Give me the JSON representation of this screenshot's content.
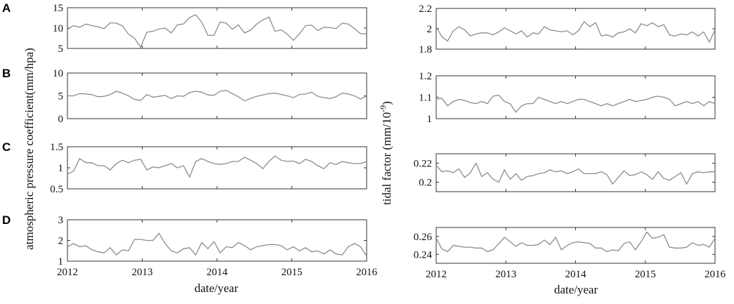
{
  "figure": {
    "left_ylabel": "atmospheric pressure coefficient(mm/hpa)",
    "right_ylabel_main": "tidal factor (mm/10",
    "right_ylabel_sup": "-9",
    "right_ylabel_end": ")"
  },
  "chart_data": [
    {
      "type": "line",
      "column": "left",
      "row": 0,
      "panel_label": "A",
      "xlim": [
        2012,
        2016
      ],
      "ylim": [
        5,
        15
      ],
      "yticks": [
        5,
        10,
        15
      ],
      "ytick_labels": [
        "5",
        "10",
        "15"
      ],
      "x": [
        2012.0,
        2012.0816,
        2012.1633,
        2012.2449,
        2012.3265,
        2012.4082,
        2012.4898,
        2012.5714,
        2012.6531,
        2012.7347,
        2012.8163,
        2012.898,
        2012.9796,
        2013.0612,
        2013.1429,
        2013.2245,
        2013.3061,
        2013.3878,
        2013.4694,
        2013.551,
        2013.6327,
        2013.7143,
        2013.7959,
        2013.8776,
        2013.9592,
        2014.0408,
        2014.1224,
        2014.2041,
        2014.2857,
        2014.3673,
        2014.449,
        2014.5306,
        2014.6122,
        2014.6939,
        2014.7755,
        2014.8571,
        2014.9388,
        2015.0204,
        2015.102,
        2015.1837,
        2015.2653,
        2015.3469,
        2015.4286,
        2015.5102,
        2015.5918,
        2015.6735,
        2015.7551,
        2015.8367,
        2015.9184,
        2016.0
      ],
      "values": [
        9.7,
        10.6,
        10.2,
        11.0,
        10.6,
        10.3,
        9.9,
        11.3,
        11.2,
        10.6,
        8.5,
        7.5,
        5.3,
        9.0,
        9.2,
        9.8,
        10.0,
        8.8,
        10.8,
        11.0,
        12.6,
        13.3,
        11.4,
        8.2,
        8.2,
        11.5,
        11.2,
        9.7,
        10.8,
        8.8,
        9.5,
        11.0,
        12.0,
        12.7,
        9.2,
        9.6,
        8.5,
        7.0,
        8.6,
        10.6,
        10.7,
        9.4,
        10.2,
        10.1,
        9.9,
        11.2,
        11.0,
        9.9,
        8.6,
        8.6
      ]
    },
    {
      "type": "line",
      "column": "left",
      "row": 1,
      "panel_label": "B",
      "xlim": [
        2012,
        2016
      ],
      "ylim": [
        0,
        10
      ],
      "yticks": [
        0,
        5,
        10
      ],
      "ytick_labels": [
        "0",
        "5",
        "10"
      ],
      "x": [
        2012.0,
        2012.0816,
        2012.1633,
        2012.2449,
        2012.3265,
        2012.4082,
        2012.4898,
        2012.5714,
        2012.6531,
        2012.7347,
        2012.8163,
        2012.898,
        2012.9796,
        2013.0612,
        2013.1429,
        2013.2245,
        2013.3061,
        2013.3878,
        2013.4694,
        2013.551,
        2013.6327,
        2013.7143,
        2013.7959,
        2013.8776,
        2013.9592,
        2014.0408,
        2014.1224,
        2014.2041,
        2014.2857,
        2014.3673,
        2014.449,
        2014.5306,
        2014.6122,
        2014.6939,
        2014.7755,
        2014.8571,
        2014.9388,
        2015.0204,
        2015.102,
        2015.1837,
        2015.2653,
        2015.3469,
        2015.4286,
        2015.5102,
        2015.5918,
        2015.6735,
        2015.7551,
        2015.8367,
        2015.9184,
        2016.0
      ],
      "values": [
        5.0,
        5.0,
        5.5,
        5.4,
        5.3,
        4.8,
        4.9,
        5.3,
        6.0,
        5.6,
        5.0,
        4.2,
        4.0,
        5.3,
        4.7,
        4.9,
        5.1,
        4.4,
        5.0,
        4.9,
        5.7,
        6.0,
        5.8,
        5.2,
        5.1,
        6.0,
        6.2,
        5.5,
        4.8,
        3.9,
        4.4,
        4.9,
        5.2,
        5.5,
        5.6,
        5.3,
        5.0,
        4.6,
        5.3,
        5.4,
        5.8,
        4.9,
        4.6,
        4.4,
        4.8,
        5.6,
        5.4,
        5.0,
        4.3,
        5.0
      ]
    },
    {
      "type": "line",
      "column": "left",
      "row": 2,
      "panel_label": "C",
      "xlim": [
        2012,
        2016
      ],
      "ylim": [
        0.5,
        1.5
      ],
      "yticks": [
        0.5,
        1,
        1.5
      ],
      "ytick_labels": [
        "0.5",
        "1",
        "1.5"
      ],
      "x": [
        2012.0,
        2012.0816,
        2012.1633,
        2012.2449,
        2012.3265,
        2012.4082,
        2012.4898,
        2012.5714,
        2012.6531,
        2012.7347,
        2012.8163,
        2012.898,
        2012.9796,
        2013.0612,
        2013.1429,
        2013.2245,
        2013.3061,
        2013.3878,
        2013.4694,
        2013.551,
        2013.6327,
        2013.7143,
        2013.7959,
        2013.8776,
        2013.9592,
        2014.0408,
        2014.1224,
        2014.2041,
        2014.2857,
        2014.3673,
        2014.449,
        2014.5306,
        2014.6122,
        2014.6939,
        2014.7755,
        2014.8571,
        2014.9388,
        2015.0204,
        2015.102,
        2015.1837,
        2015.2653,
        2015.3469,
        2015.4286,
        2015.5102,
        2015.5918,
        2015.6735,
        2015.7551,
        2015.8367,
        2015.9184,
        2016.0
      ],
      "values": [
        0.85,
        0.92,
        1.22,
        1.12,
        1.12,
        1.05,
        1.05,
        0.95,
        1.1,
        1.18,
        1.12,
        1.18,
        1.2,
        0.95,
        1.02,
        1.0,
        1.05,
        1.1,
        1.0,
        1.05,
        0.78,
        1.15,
        1.22,
        1.15,
        1.1,
        1.08,
        1.1,
        1.15,
        1.15,
        1.25,
        1.18,
        1.1,
        0.98,
        1.15,
        1.28,
        1.18,
        1.15,
        1.16,
        1.1,
        1.2,
        1.15,
        1.05,
        0.98,
        1.12,
        1.08,
        1.15,
        1.12,
        1.1,
        1.1,
        1.15
      ]
    },
    {
      "type": "line",
      "column": "left",
      "row": 3,
      "panel_label": "D",
      "xlim": [
        2012,
        2016
      ],
      "ylim": [
        1,
        3
      ],
      "yticks": [
        1,
        2,
        3
      ],
      "ytick_labels": [
        "1",
        "2",
        "3"
      ],
      "x": [
        2012.0,
        2012.0816,
        2012.1633,
        2012.2449,
        2012.3265,
        2012.4082,
        2012.4898,
        2012.5714,
        2012.6531,
        2012.7347,
        2012.8163,
        2012.898,
        2012.9796,
        2013.0612,
        2013.1429,
        2013.2245,
        2013.3061,
        2013.3878,
        2013.4694,
        2013.551,
        2013.6327,
        2013.7143,
        2013.7959,
        2013.8776,
        2013.9592,
        2014.0408,
        2014.1224,
        2014.2041,
        2014.2857,
        2014.3673,
        2014.449,
        2014.5306,
        2014.6122,
        2014.6939,
        2014.7755,
        2014.8571,
        2014.9388,
        2015.0204,
        2015.102,
        2015.1837,
        2015.2653,
        2015.3469,
        2015.4286,
        2015.5102,
        2015.5918,
        2015.6735,
        2015.7551,
        2015.8367,
        2015.9184,
        2016.0
      ],
      "values": [
        1.7,
        1.85,
        1.7,
        1.75,
        1.55,
        1.45,
        1.4,
        1.65,
        1.3,
        1.55,
        1.5,
        2.05,
        2.05,
        2.0,
        2.0,
        2.35,
        1.85,
        1.5,
        1.4,
        1.6,
        1.65,
        1.3,
        1.9,
        1.6,
        1.95,
        1.4,
        1.7,
        1.65,
        1.9,
        1.75,
        1.55,
        1.7,
        1.75,
        1.8,
        1.8,
        1.75,
        1.55,
        1.7,
        1.5,
        1.65,
        1.45,
        1.5,
        1.35,
        1.55,
        1.35,
        1.3,
        1.7,
        1.85,
        1.7,
        1.25
      ]
    },
    {
      "type": "line",
      "column": "right",
      "row": 0,
      "xlim": [
        2012,
        2016
      ],
      "ylim": [
        1.8,
        2.2
      ],
      "yticks": [
        1.8,
        2,
        2.2
      ],
      "ytick_labels": [
        "1.8",
        "2",
        "2.2"
      ],
      "x": [
        2012.0,
        2012.0816,
        2012.1633,
        2012.2449,
        2012.3265,
        2012.4082,
        2012.4898,
        2012.5714,
        2012.6531,
        2012.7347,
        2012.8163,
        2012.898,
        2012.9796,
        2013.0612,
        2013.1429,
        2013.2245,
        2013.3061,
        2013.3878,
        2013.4694,
        2013.551,
        2013.6327,
        2013.7143,
        2013.7959,
        2013.8776,
        2013.9592,
        2014.0408,
        2014.1224,
        2014.2041,
        2014.2857,
        2014.3673,
        2014.449,
        2014.5306,
        2014.6122,
        2014.6939,
        2014.7755,
        2014.8571,
        2014.9388,
        2015.0204,
        2015.102,
        2015.1837,
        2015.2653,
        2015.3469,
        2015.4286,
        2015.5102,
        2015.5918,
        2015.6735,
        2015.7551,
        2015.8367,
        2015.9184,
        2016.0
      ],
      "values": [
        2.02,
        1.92,
        1.88,
        1.98,
        2.02,
        1.99,
        1.93,
        1.95,
        1.96,
        1.96,
        1.94,
        1.97,
        2.01,
        1.98,
        1.95,
        1.98,
        1.92,
        1.96,
        1.95,
        2.02,
        1.99,
        1.98,
        1.97,
        1.98,
        1.94,
        1.98,
        2.07,
        2.02,
        2.06,
        1.93,
        1.94,
        1.92,
        1.96,
        1.97,
        2.0,
        1.96,
        2.05,
        2.03,
        2.06,
        2.02,
        2.04,
        1.94,
        1.93,
        1.95,
        1.94,
        1.97,
        1.93,
        1.97,
        1.87,
        1.99
      ]
    },
    {
      "type": "line",
      "column": "right",
      "row": 1,
      "xlim": [
        2012,
        2016
      ],
      "ylim": [
        1,
        1.2
      ],
      "yticks": [
        1,
        1.1,
        1.2
      ],
      "ytick_labels": [
        "1",
        "1.1",
        "1.2"
      ],
      "x": [
        2012.0,
        2012.0816,
        2012.1633,
        2012.2449,
        2012.3265,
        2012.4082,
        2012.4898,
        2012.5714,
        2012.6531,
        2012.7347,
        2012.8163,
        2012.898,
        2012.9796,
        2013.0612,
        2013.1429,
        2013.2245,
        2013.3061,
        2013.3878,
        2013.4694,
        2013.551,
        2013.6327,
        2013.7143,
        2013.7959,
        2013.8776,
        2013.9592,
        2014.0408,
        2014.1224,
        2014.2041,
        2014.2857,
        2014.3673,
        2014.449,
        2014.5306,
        2014.6122,
        2014.6939,
        2014.7755,
        2014.8571,
        2014.9388,
        2015.0204,
        2015.102,
        2015.1837,
        2015.2653,
        2015.3469,
        2015.4286,
        2015.5102,
        2015.5918,
        2015.6735,
        2015.7551,
        2015.8367,
        2015.9184,
        2016.0
      ],
      "values": [
        1.09,
        1.095,
        1.06,
        1.08,
        1.09,
        1.085,
        1.075,
        1.07,
        1.08,
        1.07,
        1.105,
        1.11,
        1.08,
        1.07,
        1.03,
        1.06,
        1.07,
        1.07,
        1.1,
        1.09,
        1.08,
        1.07,
        1.08,
        1.07,
        1.08,
        1.09,
        1.09,
        1.08,
        1.07,
        1.06,
        1.07,
        1.06,
        1.07,
        1.08,
        1.09,
        1.08,
        1.085,
        1.09,
        1.1,
        1.105,
        1.1,
        1.09,
        1.06,
        1.07,
        1.08,
        1.07,
        1.08,
        1.06,
        1.08,
        1.07
      ]
    },
    {
      "type": "line",
      "column": "right",
      "row": 2,
      "xlim": [
        2012,
        2016
      ],
      "ylim": [
        0.19,
        0.23
      ],
      "yticks": [
        0.2,
        0.22
      ],
      "ytick_labels": [
        "0.2",
        "0.22"
      ],
      "x": [
        2012.0,
        2012.0816,
        2012.1633,
        2012.2449,
        2012.3265,
        2012.4082,
        2012.4898,
        2012.5714,
        2012.6531,
        2012.7347,
        2012.8163,
        2012.898,
        2012.9796,
        2013.0612,
        2013.1429,
        2013.2245,
        2013.3061,
        2013.3878,
        2013.4694,
        2013.551,
        2013.6327,
        2013.7143,
        2013.7959,
        2013.8776,
        2013.9592,
        2014.0408,
        2014.1224,
        2014.2041,
        2014.2857,
        2014.3673,
        2014.449,
        2014.5306,
        2014.6122,
        2014.6939,
        2014.7755,
        2014.8571,
        2014.9388,
        2015.0204,
        2015.102,
        2015.1837,
        2015.2653,
        2015.3469,
        2015.4286,
        2015.5102,
        2015.5918,
        2015.6735,
        2015.7551,
        2015.8367,
        2015.9184,
        2016.0
      ],
      "values": [
        0.218,
        0.211,
        0.212,
        0.21,
        0.214,
        0.205,
        0.21,
        0.22,
        0.206,
        0.21,
        0.203,
        0.2,
        0.213,
        0.203,
        0.209,
        0.202,
        0.206,
        0.207,
        0.209,
        0.21,
        0.213,
        0.211,
        0.212,
        0.209,
        0.211,
        0.214,
        0.209,
        0.209,
        0.209,
        0.211,
        0.208,
        0.198,
        0.205,
        0.212,
        0.207,
        0.208,
        0.211,
        0.208,
        0.203,
        0.211,
        0.204,
        0.202,
        0.206,
        0.21,
        0.198,
        0.209,
        0.211,
        0.21,
        0.211,
        0.211
      ]
    },
    {
      "type": "line",
      "column": "right",
      "row": 3,
      "xlim": [
        2012,
        2016
      ],
      "ylim": [
        0.23,
        0.27
      ],
      "yticks": [
        0.24,
        0.26
      ],
      "ytick_labels": [
        "0.24",
        "0.26"
      ],
      "x": [
        2012.0,
        2012.0816,
        2012.1633,
        2012.2449,
        2012.3265,
        2012.4082,
        2012.4898,
        2012.5714,
        2012.6531,
        2012.7347,
        2012.8163,
        2012.898,
        2012.9796,
        2013.0612,
        2013.1429,
        2013.2245,
        2013.3061,
        2013.3878,
        2013.4694,
        2013.551,
        2013.6327,
        2013.7143,
        2013.7959,
        2013.8776,
        2013.9592,
        2014.0408,
        2014.1224,
        2014.2041,
        2014.2857,
        2014.3673,
        2014.449,
        2014.5306,
        2014.6122,
        2014.6939,
        2014.7755,
        2014.8571,
        2014.9388,
        2015.0204,
        2015.102,
        2015.1837,
        2015.2653,
        2015.3469,
        2015.4286,
        2015.5102,
        2015.5918,
        2015.6735,
        2015.7551,
        2015.8367,
        2015.9184,
        2016.0
      ],
      "values": [
        0.258,
        0.246,
        0.243,
        0.25,
        0.249,
        0.248,
        0.248,
        0.247,
        0.247,
        0.243,
        0.245,
        0.252,
        0.259,
        0.254,
        0.249,
        0.253,
        0.25,
        0.25,
        0.251,
        0.256,
        0.251,
        0.259,
        0.245,
        0.25,
        0.253,
        0.254,
        0.253,
        0.252,
        0.247,
        0.247,
        0.243,
        0.245,
        0.244,
        0.252,
        0.254,
        0.245,
        0.254,
        0.265,
        0.258,
        0.259,
        0.262,
        0.248,
        0.247,
        0.247,
        0.248,
        0.253,
        0.25,
        0.251,
        0.248,
        0.258
      ]
    }
  ],
  "x_axis": {
    "ticks": [
      2012,
      2013,
      2014,
      2015,
      2016
    ],
    "tick_labels": [
      "2012",
      "2013",
      "2014",
      "2015",
      "2016"
    ],
    "xlabel": "date/year"
  }
}
